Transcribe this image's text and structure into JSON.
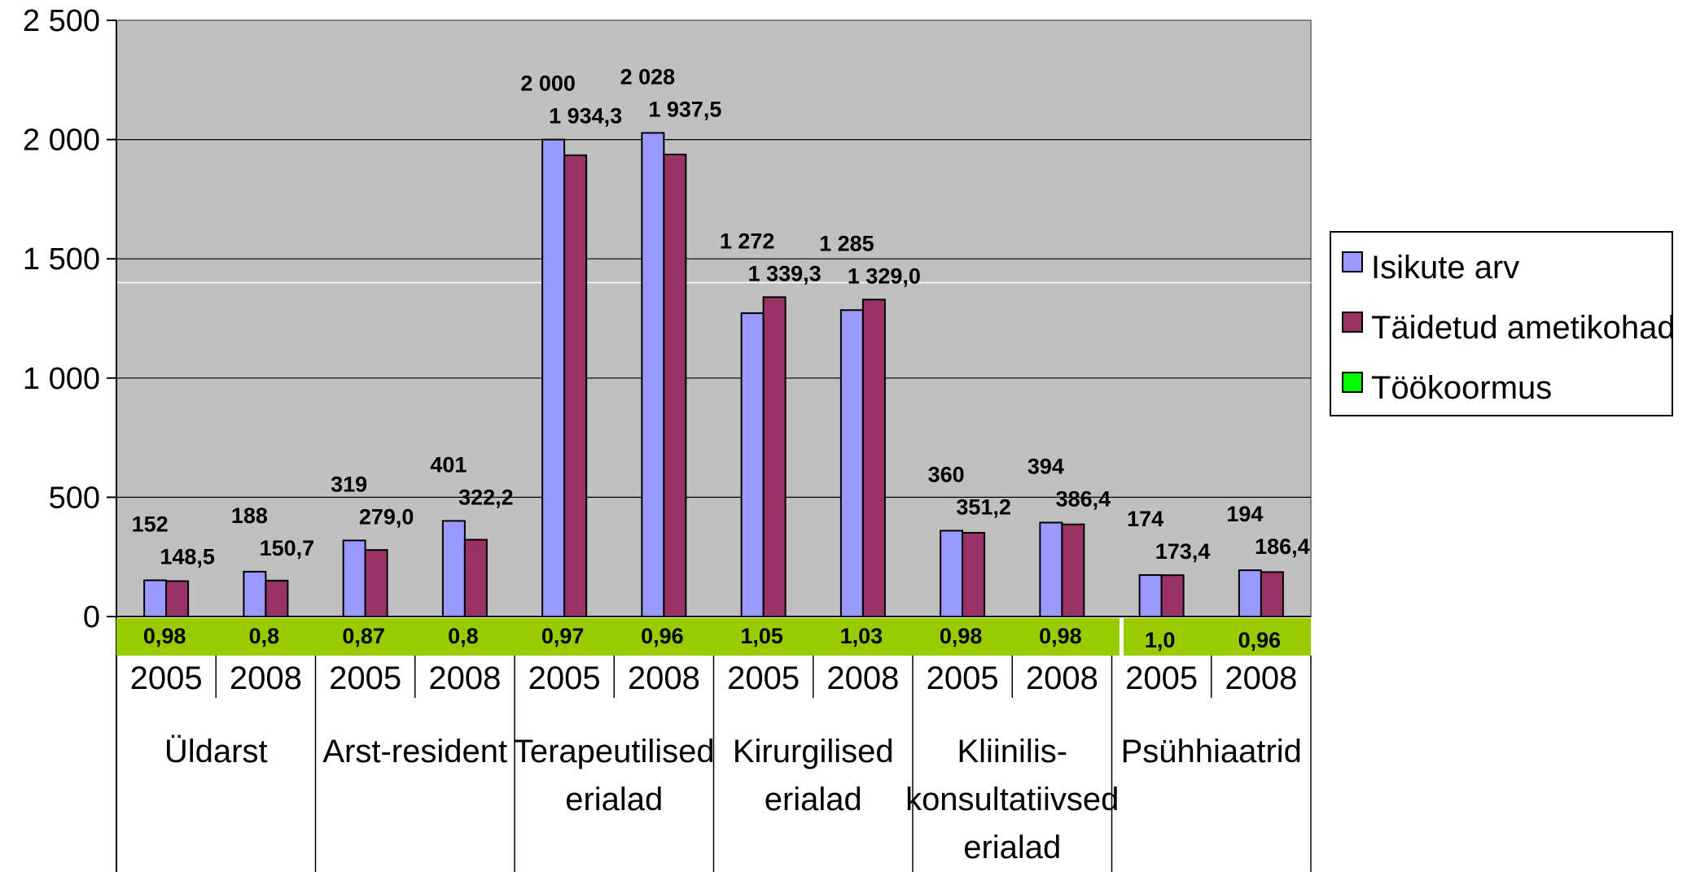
{
  "chart_data": {
    "type": "bar",
    "categories": [
      "2005",
      "2008",
      "2005",
      "2008",
      "2005",
      "2008",
      "2005",
      "2008",
      "2005",
      "2008",
      "2005",
      "2008"
    ],
    "groups": [
      {
        "label_lines": [
          "Üldarst"
        ]
      },
      {
        "label_lines": [
          "Arst-resident"
        ]
      },
      {
        "label_lines": [
          "Terapeutilised",
          "erialad"
        ]
      },
      {
        "label_lines": [
          "Kirurgilised",
          "erialad"
        ]
      },
      {
        "label_lines": [
          "Kliinilis-",
          "konsultatiivsed",
          "erialad"
        ]
      },
      {
        "label_lines": [
          "Psühhiaatrid"
        ]
      }
    ],
    "series": [
      {
        "name": "Isikute arv",
        "color": "#9999ff",
        "values": [
          152,
          188,
          319,
          401,
          2000,
          2028,
          1272,
          1285,
          360,
          394,
          174,
          194
        ],
        "labels": [
          "152",
          "188",
          "319",
          "401",
          "2 000",
          "2 028",
          "1 272",
          "1 285",
          "360",
          "394",
          "174",
          "194"
        ]
      },
      {
        "name": "Täidetud ametikohad",
        "color": "#993366",
        "values": [
          148.5,
          150.7,
          279.0,
          322.2,
          1934.3,
          1937.5,
          1339.3,
          1329.0,
          351.2,
          386.4,
          173.4,
          186.4
        ],
        "labels": [
          "148,5",
          "150,7",
          "279,0",
          "322,2",
          "1 934,3",
          "1 937,5",
          "1 339,3",
          "1 329,0",
          "351,2",
          "386,4",
          "173,4",
          "186,4"
        ]
      },
      {
        "name": "Töökoormus",
        "color": "#00ff00",
        "values": [
          0.98,
          0.8,
          0.87,
          0.8,
          0.97,
          0.96,
          1.05,
          1.03,
          0.98,
          0.98,
          1.0,
          0.96
        ],
        "labels": [
          "0,98",
          "0,8",
          "0,87",
          "0,8",
          "0,97",
          "0,96",
          "1,05",
          "1,03",
          "0,98",
          "0,98",
          "1,0",
          "0,96"
        ]
      }
    ],
    "ylim": [
      0,
      2500
    ],
    "yticks": [
      0,
      500,
      1000,
      1500,
      2000,
      2500
    ],
    "ytick_labels": [
      "0",
      "500",
      "1 000",
      "1 500",
      "2 000",
      "2 500"
    ],
    "grid": true,
    "plot_background": "#c0c0c0",
    "workload_band_color": "#99cc00",
    "legend_position": "right"
  }
}
